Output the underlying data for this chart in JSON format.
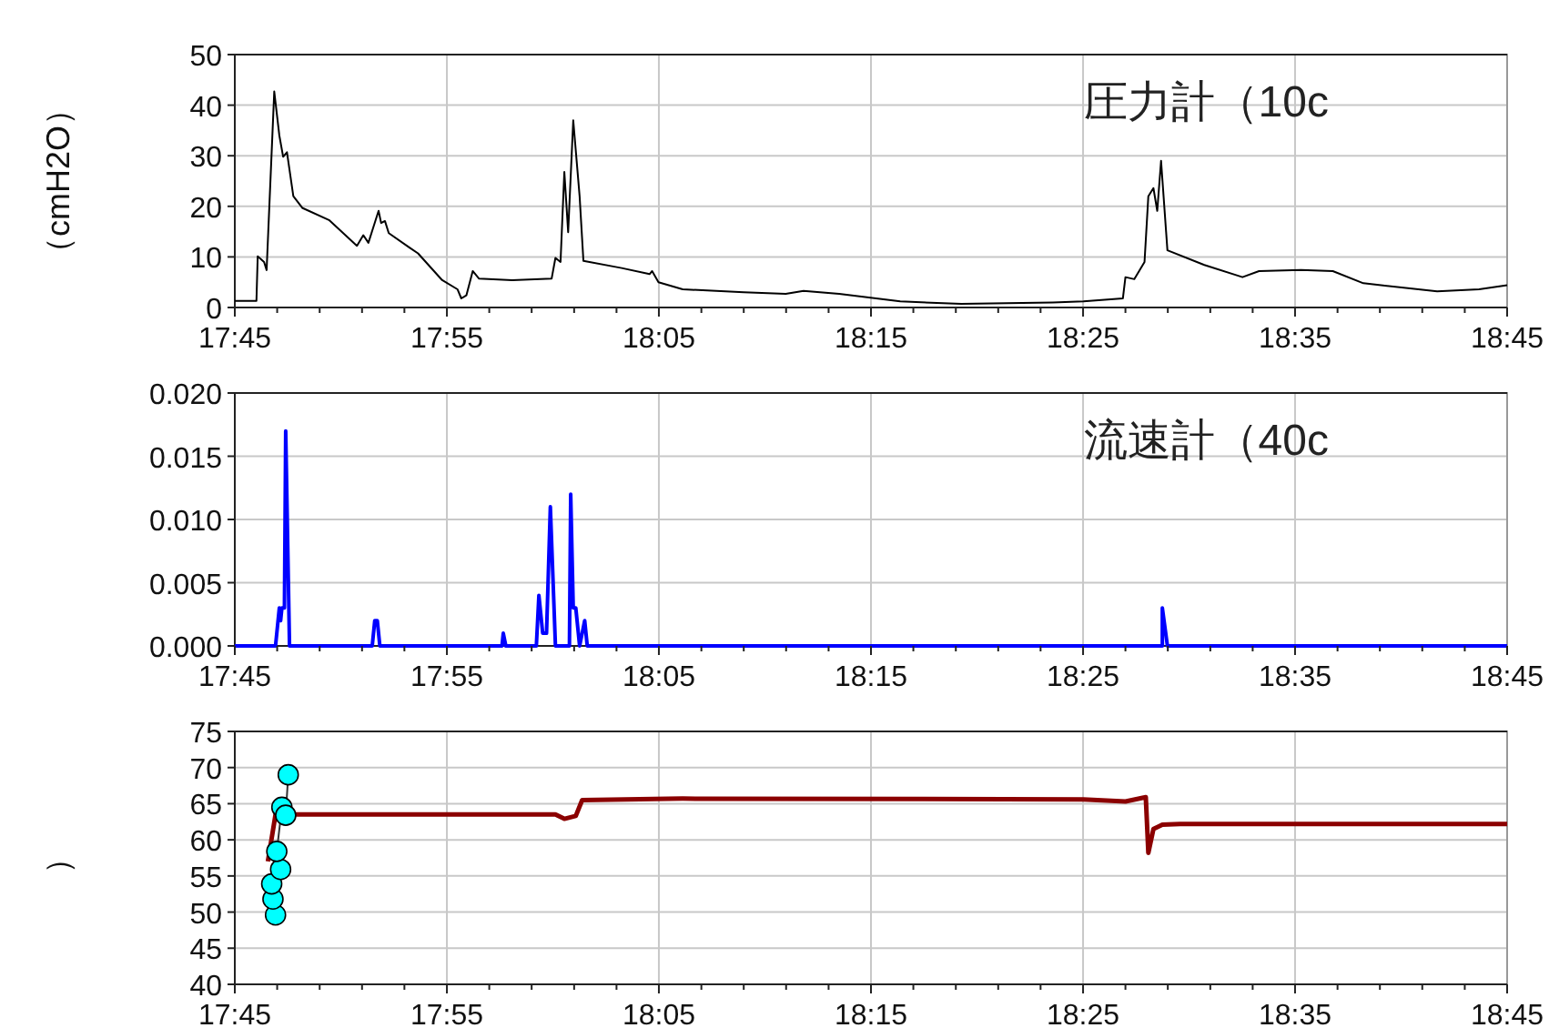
{
  "chart_data": [
    {
      "type": "line",
      "ylabel": "（cmH2O）",
      "annotations": [
        "圧力計（10c"
      ],
      "grid": true,
      "xlim": [
        17.75,
        18.75
      ],
      "ylim": [
        0,
        50
      ],
      "yticks": [
        0,
        10,
        20,
        30,
        40,
        50
      ],
      "xticks": [
        {
          "value": 17.75,
          "label": "17:45"
        },
        {
          "value": 17.7833,
          "label": null
        },
        {
          "value": 17.8167,
          "label": null
        },
        {
          "value": 17.85,
          "label": null
        },
        {
          "value": 17.8833,
          "label": null
        },
        {
          "value": 17.9167,
          "label": "17:55"
        },
        {
          "value": 17.95,
          "label": null
        },
        {
          "value": 17.9833,
          "label": null
        },
        {
          "value": 18.0167,
          "label": null
        },
        {
          "value": 18.05,
          "label": null
        },
        {
          "value": 18.0833,
          "label": "18:05"
        },
        {
          "value": 18.1167,
          "label": null
        },
        {
          "value": 18.15,
          "label": null
        },
        {
          "value": 18.1833,
          "label": null
        },
        {
          "value": 18.2167,
          "label": null
        },
        {
          "value": 18.25,
          "label": "18:15"
        },
        {
          "value": 18.2833,
          "label": null
        },
        {
          "value": 18.3167,
          "label": null
        },
        {
          "value": 18.35,
          "label": null
        },
        {
          "value": 18.3833,
          "label": null
        },
        {
          "value": 18.4167,
          "label": "18:25"
        },
        {
          "value": 18.45,
          "label": null
        },
        {
          "value": 18.4833,
          "label": null
        },
        {
          "value": 18.5167,
          "label": null
        },
        {
          "value": 18.55,
          "label": null
        },
        {
          "value": 18.5833,
          "label": "18:35"
        },
        {
          "value": 18.6167,
          "label": null
        },
        {
          "value": 18.65,
          "label": null
        },
        {
          "value": 18.6833,
          "label": null
        },
        {
          "value": 18.7167,
          "label": null
        },
        {
          "value": 18.75,
          "label": "18:45"
        }
      ],
      "series": [
        {
          "color": "#000000",
          "x": [
            17.75,
            17.767,
            17.768,
            17.773,
            17.775,
            17.781,
            17.785,
            17.788,
            17.791,
            17.796,
            17.803,
            17.824,
            17.846,
            17.851,
            17.855,
            17.863,
            17.865,
            17.868,
            17.871,
            17.887,
            17.894,
            17.913,
            17.925,
            17.928,
            17.932,
            17.937,
            17.942,
            17.968,
            17.999,
            18.002,
            18.006,
            18.009,
            18.012,
            18.016,
            18.021,
            18.024,
            18.054,
            18.076,
            18.078,
            18.083,
            18.102,
            18.15,
            18.183,
            18.197,
            18.225,
            18.273,
            18.321,
            18.393,
            18.417,
            18.448,
            18.45,
            18.457,
            18.465,
            18.468,
            18.472,
            18.475,
            18.478,
            18.483,
            18.512,
            18.542,
            18.555,
            18.588,
            18.613,
            18.637,
            18.695,
            18.728,
            18.75
          ],
          "values": [
            1.3,
            1.3,
            10.1,
            9,
            7.4,
            42.7,
            34,
            29.8,
            30.7,
            22,
            19.7,
            17.3,
            12.2,
            14.3,
            12.8,
            19.1,
            16.7,
            17.1,
            14.7,
            11.9,
            10.7,
            5.4,
            3.6,
            1.8,
            2.4,
            7.2,
            5.7,
            5.4,
            5.7,
            9.8,
            9,
            26.8,
            14.9,
            37,
            22,
            9.2,
            7.8,
            6.6,
            7.2,
            5,
            3.6,
            3,
            2.7,
            3.3,
            2.7,
            1.2,
            0.7,
            1,
            1.2,
            1.8,
            6,
            5.6,
            9,
            22,
            23.6,
            19.1,
            29,
            11.3,
            8.4,
            6,
            7.2,
            7.4,
            7.2,
            4.8,
            3.2,
            3.6,
            4.4
          ]
        }
      ]
    },
    {
      "type": "line",
      "annotations": [
        "流速計（40c"
      ],
      "grid": true,
      "xlim": [
        17.75,
        18.75
      ],
      "ylim": [
        0,
        0.02
      ],
      "yticks": [
        {
          "value": 0,
          "label": "0.000"
        },
        {
          "value": 0.005,
          "label": "0.005"
        },
        {
          "value": 0.01,
          "label": "0.010"
        },
        {
          "value": 0.015,
          "label": "0.015"
        },
        {
          "value": 0.02,
          "label": "0.020"
        }
      ],
      "xticks": [
        {
          "value": 17.75,
          "label": "17:45"
        },
        {
          "value": 17.7833,
          "label": null
        },
        {
          "value": 17.8167,
          "label": null
        },
        {
          "value": 17.85,
          "label": null
        },
        {
          "value": 17.8833,
          "label": null
        },
        {
          "value": 17.9167,
          "label": "17:55"
        },
        {
          "value": 17.95,
          "label": null
        },
        {
          "value": 17.9833,
          "label": null
        },
        {
          "value": 18.0167,
          "label": null
        },
        {
          "value": 18.05,
          "label": null
        },
        {
          "value": 18.0833,
          "label": "18:05"
        },
        {
          "value": 18.1167,
          "label": null
        },
        {
          "value": 18.15,
          "label": null
        },
        {
          "value": 18.1833,
          "label": null
        },
        {
          "value": 18.2167,
          "label": null
        },
        {
          "value": 18.25,
          "label": "18:15"
        },
        {
          "value": 18.2833,
          "label": null
        },
        {
          "value": 18.3167,
          "label": null
        },
        {
          "value": 18.35,
          "label": null
        },
        {
          "value": 18.3833,
          "label": null
        },
        {
          "value": 18.4167,
          "label": "18:25"
        },
        {
          "value": 18.45,
          "label": null
        },
        {
          "value": 18.4833,
          "label": null
        },
        {
          "value": 18.5167,
          "label": null
        },
        {
          "value": 18.55,
          "label": null
        },
        {
          "value": 18.5833,
          "label": "18:35"
        },
        {
          "value": 18.6167,
          "label": null
        },
        {
          "value": 18.65,
          "label": null
        },
        {
          "value": 18.6833,
          "label": null
        },
        {
          "value": 18.7167,
          "label": null
        },
        {
          "value": 18.75,
          "label": "18:45"
        }
      ],
      "series": [
        {
          "color": "#0000ff",
          "x": [
            17.75,
            17.782,
            17.785,
            17.786,
            17.787,
            17.789,
            17.79,
            17.793,
            17.858,
            17.86,
            17.862,
            17.864,
            17.96,
            17.961,
            17.963,
            17.987,
            17.989,
            17.992,
            17.995,
            17.998,
            18.002,
            18.013,
            18.014,
            18.016,
            18.018,
            18.02,
            18.021,
            18.023,
            18.025,
            18.027,
            18.479,
            18.479,
            18.483,
            18.75
          ],
          "values": [
            0,
            0,
            0.003,
            0.002,
            0.003,
            0.003,
            0.017,
            0,
            0,
            0.002,
            0.002,
            0,
            0,
            0.001,
            0,
            0,
            0.004,
            0.001,
            0.001,
            0.011,
            0,
            0,
            0.012,
            0.003,
            0.003,
            0.001,
            0,
            0.001,
            0.002,
            0,
            0,
            0.003,
            0,
            0
          ]
        }
      ]
    },
    {
      "type": "line",
      "ylabel": "）",
      "grid": true,
      "xlim": [
        17.75,
        18.75
      ],
      "ylim": [
        40,
        75
      ],
      "yticks": [
        40,
        45,
        50,
        55,
        60,
        65,
        70,
        75
      ],
      "xticks": [
        {
          "value": 17.75,
          "label": "17:45"
        },
        {
          "value": 17.7833,
          "label": null
        },
        {
          "value": 17.8167,
          "label": null
        },
        {
          "value": 17.85,
          "label": null
        },
        {
          "value": 17.8833,
          "label": null
        },
        {
          "value": 17.9167,
          "label": "17:55"
        },
        {
          "value": 17.95,
          "label": null
        },
        {
          "value": 17.9833,
          "label": null
        },
        {
          "value": 18.0167,
          "label": null
        },
        {
          "value": 18.05,
          "label": null
        },
        {
          "value": 18.0833,
          "label": "18:05"
        },
        {
          "value": 18.1167,
          "label": null
        },
        {
          "value": 18.15,
          "label": null
        },
        {
          "value": 18.1833,
          "label": null
        },
        {
          "value": 18.2167,
          "label": null
        },
        {
          "value": 18.25,
          "label": "18:15"
        },
        {
          "value": 18.2833,
          "label": null
        },
        {
          "value": 18.3167,
          "label": null
        },
        {
          "value": 18.35,
          "label": null
        },
        {
          "value": 18.3833,
          "label": null
        },
        {
          "value": 18.4167,
          "label": "18:25"
        },
        {
          "value": 18.45,
          "label": null
        },
        {
          "value": 18.4833,
          "label": null
        },
        {
          "value": 18.5167,
          "label": null
        },
        {
          "value": 18.55,
          "label": null
        },
        {
          "value": 18.5833,
          "label": "18:35"
        },
        {
          "value": 18.6167,
          "label": null
        },
        {
          "value": 18.65,
          "label": null
        },
        {
          "value": 18.6833,
          "label": null
        },
        {
          "value": 18.7167,
          "label": null
        },
        {
          "value": 18.75,
          "label": "18:45"
        }
      ],
      "series": [
        {
          "color": "#8b0000",
          "x": [
            17.776,
            17.782,
            18.002,
            18.009,
            18.018,
            18.023,
            18.102,
            18.417,
            18.45,
            18.466,
            18.468,
            18.472,
            18.479,
            18.493,
            18.75
          ],
          "values": [
            57,
            63.5,
            63.5,
            62.9,
            63.3,
            65.5,
            65.7,
            65.6,
            65.3,
            65.9,
            58.2,
            61.5,
            62.1,
            62.2,
            62.2
          ]
        },
        {
          "type": "line",
          "marker": "circle",
          "color": "#00ffff",
          "x": [
            17.782,
            17.78,
            17.779,
            17.786,
            17.783,
            17.787,
            17.79,
            17.792
          ],
          "values": [
            49.6,
            51.8,
            53.9,
            55.9,
            58.4,
            64.5,
            63.4,
            69
          ]
        }
      ]
    }
  ]
}
